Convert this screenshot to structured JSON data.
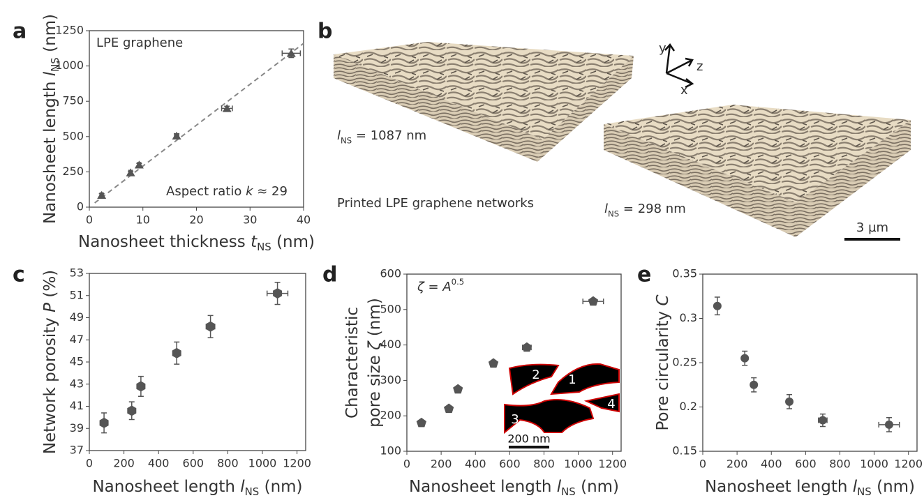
{
  "chart_data": [
    {
      "type": "scatter",
      "panel": "a",
      "marker": "triangle",
      "color": "#555555",
      "xlabel": [
        [
          "Nanosheet thickness ",
          {
            "text": "t",
            "italic": true
          },
          {
            "text": "NS",
            "sub": true
          },
          " (nm)"
        ]
      ],
      "ylabel": [
        [
          "Nanosheet length ",
          {
            "text": "l",
            "italic": true
          },
          {
            "text": "NS",
            "sub": true
          },
          " (nm)"
        ]
      ],
      "annotations": [
        [
          "LPE graphene"
        ],
        [
          "Aspect ratio ",
          {
            "text": "k",
            "italic": true
          },
          " ≈ 29"
        ]
      ],
      "xlim": [
        0,
        40
      ],
      "xticks": [
        0,
        10,
        20,
        30,
        40
      ],
      "ylim": [
        0,
        1250
      ],
      "yticks": [
        0,
        250,
        500,
        750,
        1000,
        1250
      ],
      "x": [
        2.3,
        7.7,
        9.3,
        16.3,
        25.7,
        37.7
      ],
      "values": [
        85,
        245,
        300,
        505,
        700,
        1090
      ],
      "xerr": [
        0.3,
        0.3,
        0.3,
        0.4,
        1.0,
        1.7
      ],
      "yerr": [
        10,
        10,
        10,
        15,
        15,
        30
      ],
      "fit": {
        "x": [
          1,
          40
        ],
        "y": [
          30,
          1160
        ]
      }
    },
    {
      "type": "scatter",
      "panel": "c",
      "marker": "hexagon",
      "color": "#555555",
      "xlabel": [
        [
          "Nanosheet length ",
          {
            "text": "l",
            "italic": true
          },
          {
            "text": "NS",
            "sub": true
          },
          " (nm)"
        ]
      ],
      "ylabel": [
        [
          "Network porosity ",
          {
            "text": "P",
            "italic": true
          },
          " (%)"
        ]
      ],
      "xlim": [
        0,
        1250
      ],
      "xticks": [
        0,
        200,
        400,
        600,
        800,
        1000,
        1200
      ],
      "ylim": [
        37,
        53
      ],
      "yticks": [
        37,
        39,
        41,
        43,
        45,
        47,
        49,
        51,
        53
      ],
      "x": [
        85,
        245,
        298,
        505,
        700,
        1087
      ],
      "values": [
        39.5,
        40.6,
        42.8,
        45.8,
        48.2,
        51.2
      ],
      "xerr": [
        10,
        10,
        10,
        15,
        25,
        60
      ],
      "yerr": [
        0.9,
        0.8,
        0.9,
        1.0,
        1.0,
        1.0
      ]
    },
    {
      "type": "scatter",
      "panel": "d",
      "marker": "pentagon",
      "color": "#555555",
      "xlabel": [
        [
          "Nanosheet length ",
          {
            "text": "l",
            "italic": true
          },
          {
            "text": "NS",
            "sub": true
          },
          " (nm)"
        ]
      ],
      "ylabel": [
        [
          "Characteristic"
        ],
        [
          "pore size ",
          {
            "text": "ζ",
            "italic": true
          },
          " (nm)"
        ]
      ],
      "annotations": [
        [
          {
            "text": "ζ",
            "italic": true
          },
          " = ",
          {
            "text": "A",
            "italic": true
          },
          {
            "text": "0.5",
            "sup": true
          }
        ]
      ],
      "inset": {
        "labels": [
          "1",
          "2",
          "3",
          "4"
        ],
        "scale": "200 nm"
      },
      "xlim": [
        0,
        1250
      ],
      "xticks": [
        0,
        200,
        400,
        600,
        800,
        1000,
        1200
      ],
      "ylim": [
        100,
        600
      ],
      "yticks": [
        100,
        200,
        300,
        400,
        500,
        600
      ],
      "x": [
        85,
        245,
        298,
        505,
        700,
        1087
      ],
      "values": [
        180,
        220,
        275,
        348,
        393,
        523
      ],
      "xerr": [
        10,
        10,
        10,
        15,
        25,
        60
      ],
      "yerr": [
        3,
        3,
        3,
        3,
        5,
        7
      ]
    },
    {
      "type": "scatter",
      "panel": "e",
      "marker": "circle",
      "color": "#555555",
      "xlabel": [
        [
          "Nanosheet length ",
          {
            "text": "l",
            "italic": true
          },
          {
            "text": "NS",
            "sub": true
          },
          " (nm)"
        ]
      ],
      "ylabel": [
        [
          "Pore circularity ",
          {
            "text": "C",
            "italic": true
          }
        ]
      ],
      "xlim": [
        0,
        1250
      ],
      "xticks": [
        0,
        200,
        400,
        600,
        800,
        1000,
        1200
      ],
      "ylim": [
        0.15,
        0.35
      ],
      "yticks": [
        0.15,
        0.2,
        0.25,
        0.3,
        0.35
      ],
      "x": [
        85,
        245,
        298,
        505,
        700,
        1087
      ],
      "values": [
        0.314,
        0.255,
        0.225,
        0.206,
        0.185,
        0.18
      ],
      "xerr": [
        10,
        10,
        10,
        15,
        25,
        60
      ],
      "yerr": [
        0.01,
        0.008,
        0.008,
        0.008,
        0.007,
        0.008
      ]
    }
  ],
  "panel_b": {
    "panel": "b",
    "caption": "Printed LPE graphene networks",
    "labels": [
      [
        {
          "text": "l",
          "italic": true
        },
        {
          "text": "NS",
          "sub": true
        },
        " = 1087 nm"
      ],
      [
        {
          "text": "l",
          "italic": true
        },
        {
          "text": "NS",
          "sub": true
        },
        " = 298 nm"
      ]
    ],
    "scale": "3 µm",
    "axes": [
      "y",
      "z",
      "x"
    ]
  }
}
